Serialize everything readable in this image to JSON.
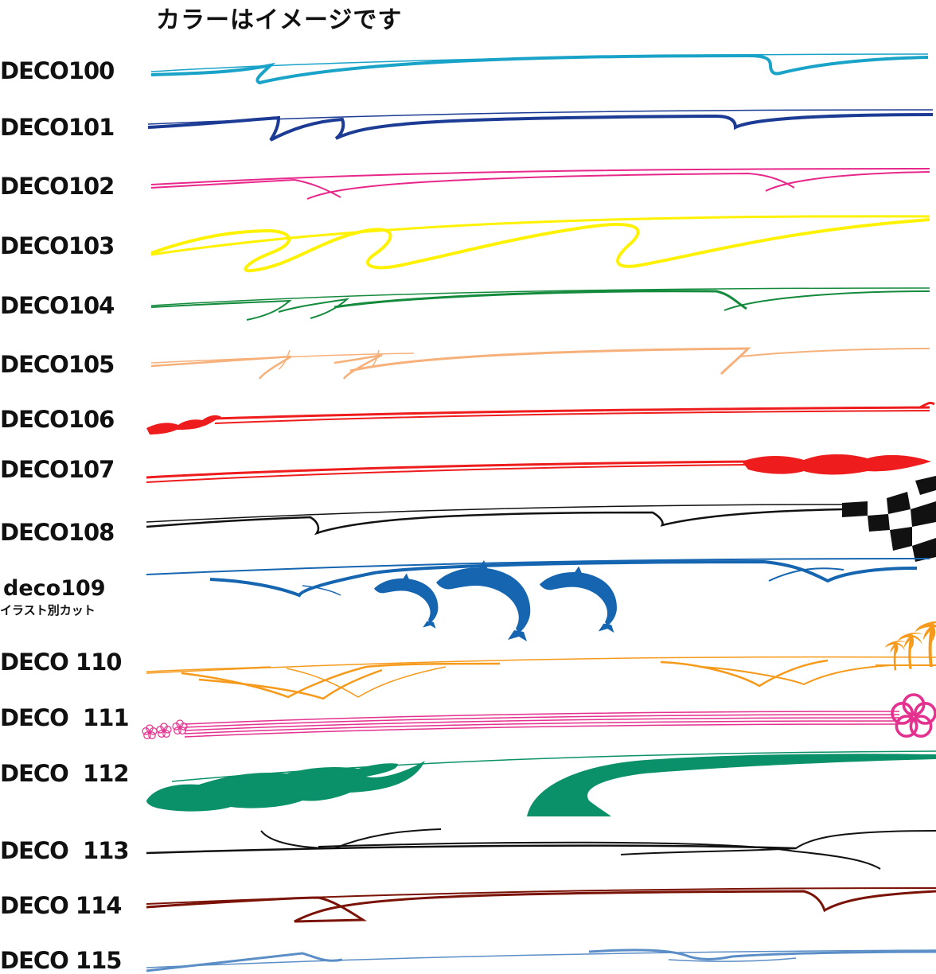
{
  "title": "カラーはイメージです",
  "designs": [
    {
      "label": "DECO100",
      "color": "#1aa3c8"
    },
    {
      "label": "DECO101",
      "color": "#1c3b94"
    },
    {
      "label": "DECO102",
      "color": "#e8278a"
    },
    {
      "label": "DECO103",
      "color": "#fff200"
    },
    {
      "label": "DECO104",
      "color": "#148a3c"
    },
    {
      "label": "DECO105",
      "color": "#f6b07a"
    },
    {
      "label": "DECO106",
      "color": "#ee1c1c"
    },
    {
      "label": "DECO107",
      "color": "#ee1c1c"
    },
    {
      "label": "DECO108",
      "color": "#111111"
    },
    {
      "label": "deco109",
      "sublabel": "イラスト別カット",
      "color": "#1565b0"
    },
    {
      "label": "DECO 110",
      "color": "#f59a1b"
    },
    {
      "label": "DECO  111",
      "color": "#e4308e"
    },
    {
      "label": "DECO  112",
      "color": "#0a9169"
    },
    {
      "label": "DECO  113",
      "color": "#111111"
    },
    {
      "label": "DECO 114",
      "color": "#7a1206"
    },
    {
      "label": "DECO 115",
      "color": "#5b8ec6"
    }
  ]
}
